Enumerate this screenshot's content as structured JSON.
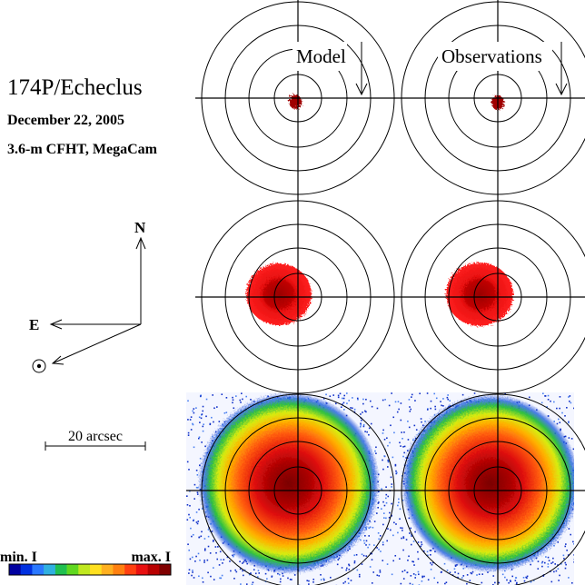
{
  "title": "174P/Echeclus",
  "date": "December 22, 2005",
  "instrument": "3.6-m CFHT, MegaCam",
  "panels": {
    "left_label": "Model",
    "right_label": "Observations"
  },
  "compass": {
    "north": "N",
    "east": "E"
  },
  "scale_bar": "20 arcsec",
  "colorbar": {
    "min_label": "min. I",
    "max_label": "max. I"
  }
}
